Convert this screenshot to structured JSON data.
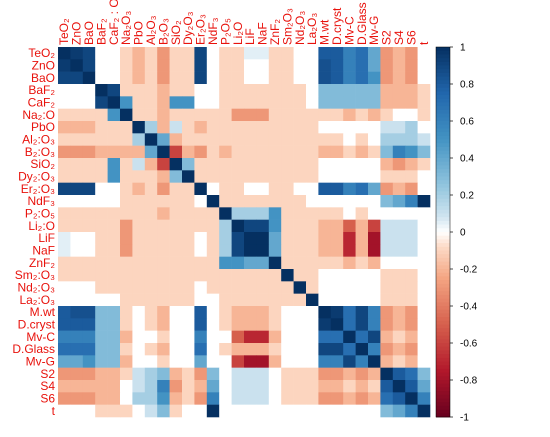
{
  "chart_data": {
    "type": "heatmap",
    "variables": [
      "TeO₂",
      "ZnO",
      "BaO",
      "BaF₂",
      "CaF₂",
      "Na₂O",
      "PbO",
      "Al₂O₃",
      "B₂O₃",
      "SiO₂",
      "Dy₂O₃",
      "Er₂O₃",
      "NdF₃",
      "P₂O₅",
      "Li₂O",
      "LiF",
      "NaF",
      "ZnF₂",
      "Sm₂O₃",
      "Nd₂O₃",
      "La₂O₃",
      "M.wt",
      "D.cryst",
      "Mv-C",
      "D.Glass",
      "Mv-G",
      "S2",
      "S4",
      "S6",
      "t"
    ],
    "x_labels": [
      "TeO₂",
      "ZnO",
      "BaO",
      "BaF₂",
      "CaF₂ : O",
      "Na₂O₃",
      "PbO",
      "Al₂O₃",
      "B₂O₃",
      "SiO₂",
      "Dy₂O₃",
      "Er₂O₃",
      "NdF₃",
      "P₂O₅",
      "Li₂O",
      "LiF",
      "NaF",
      "ZnF₂",
      "Sm₂O₃",
      "Nd₂O₃",
      "La₂O₃",
      "M.wt",
      "D.cryst",
      "Mv-C",
      "D.Glass",
      "Mv-G",
      "S2",
      "S4",
      "S6",
      "t"
    ],
    "y_labels": [
      "TeO₂",
      "ZnO",
      "BaO",
      "BaF₂",
      "CaF₂",
      "Na₂:O",
      "PbO",
      "Al₂:O₃",
      "B₂:O₃",
      "SiO₂",
      "Dy₂:O₃",
      "Er₂:O₃",
      "NdF₃",
      "P₂:O₅",
      "Li₂:O",
      "LiF",
      "NaF",
      "ZnF₂",
      "Sm₂:O₃",
      "Nd₂:O₃",
      "La₂:O₃",
      "M.wt",
      "D.cryst",
      "Mv-C",
      "D.Glass",
      "Mv-G",
      "S2",
      "S4",
      "S6",
      "t"
    ],
    "matrix": [
      [
        1,
        0.95,
        0.9,
        0,
        0,
        -0.1,
        -0.2,
        -0.1,
        -0.3,
        -0.1,
        -0.1,
        0.9,
        0,
        -0.1,
        -0.1,
        0.05,
        0.05,
        -0.1,
        -0.1,
        0,
        0,
        0.8,
        0.8,
        0.6,
        0.7,
        0.4,
        -0.3,
        -0.2,
        -0.3,
        0
      ],
      [
        0.95,
        1,
        0.9,
        0,
        0,
        -0.1,
        -0.2,
        -0.1,
        -0.3,
        -0.1,
        -0.1,
        0.9,
        0,
        -0.1,
        -0.1,
        0,
        0,
        -0.1,
        -0.1,
        0,
        0,
        0.85,
        0.8,
        0.6,
        0.7,
        0.4,
        -0.3,
        -0.2,
        -0.3,
        0
      ],
      [
        0.9,
        0.9,
        1,
        0,
        0,
        -0.1,
        -0.2,
        -0.1,
        -0.3,
        -0.1,
        -0.1,
        0.9,
        0,
        -0.1,
        -0.1,
        0,
        0,
        -0.1,
        -0.1,
        0,
        0,
        0.85,
        0.8,
        0.6,
        0.7,
        0.5,
        -0.3,
        -0.2,
        -0.3,
        0
      ],
      [
        0,
        0,
        0,
        1,
        0.9,
        -0.1,
        -0.1,
        -0.1,
        -0.2,
        -0.1,
        -0.1,
        0,
        0,
        -0.1,
        -0.1,
        -0.1,
        -0.1,
        -0.1,
        -0.1,
        -0.1,
        0,
        0.3,
        0.3,
        0.3,
        0.3,
        0.3,
        -0.2,
        -0.2,
        -0.2,
        -0.1
      ],
      [
        0,
        0,
        0,
        0.9,
        1,
        0.5,
        -0.1,
        -0.1,
        -0.2,
        0.5,
        0.5,
        0,
        0,
        -0.1,
        -0.1,
        -0.1,
        -0.1,
        -0.1,
        -0.1,
        -0.1,
        0,
        0.3,
        0.3,
        0.3,
        0.3,
        0.3,
        -0.2,
        -0.2,
        -0.2,
        -0.1
      ],
      [
        -0.1,
        -0.1,
        -0.1,
        -0.1,
        0.5,
        1,
        -0.1,
        -0.1,
        -0.2,
        -0.1,
        -0.1,
        -0.1,
        -0.1,
        -0.1,
        -0.3,
        -0.3,
        -0.3,
        -0.1,
        -0.1,
        -0.1,
        -0.1,
        -0.1,
        -0.1,
        -0.2,
        -0.1,
        -0.2,
        -0.1,
        0,
        0,
        -0.1
      ],
      [
        -0.2,
        -0.2,
        -0.2,
        -0.1,
        -0.1,
        -0.1,
        1,
        0.2,
        -0.2,
        0.1,
        -0.1,
        -0.2,
        -0.1,
        -0.1,
        -0.1,
        -0.1,
        -0.1,
        -0.1,
        -0.1,
        -0.1,
        -0.1,
        0,
        0,
        0,
        0,
        0,
        0.1,
        0.1,
        0.2,
        0
      ],
      [
        -0.1,
        -0.1,
        -0.1,
        -0.1,
        -0.1,
        -0.1,
        0.2,
        1,
        0.4,
        -0.2,
        -0.1,
        -0.1,
        -0.1,
        -0.1,
        -0.1,
        -0.1,
        -0.1,
        -0.1,
        -0.1,
        -0.1,
        -0.1,
        -0.1,
        -0.1,
        0,
        -0.1,
        0,
        0.2,
        0.2,
        0.2,
        0.1
      ],
      [
        -0.3,
        -0.3,
        -0.3,
        -0.2,
        -0.2,
        -0.2,
        -0.2,
        0.4,
        1,
        -0.6,
        -0.2,
        -0.3,
        -0.1,
        -0.2,
        -0.1,
        -0.1,
        -0.1,
        -0.1,
        -0.1,
        -0.1,
        -0.1,
        -0.2,
        -0.2,
        -0.1,
        -0.2,
        -0.1,
        0.3,
        0.6,
        0.5,
        0.3
      ],
      [
        -0.1,
        -0.1,
        -0.1,
        -0.1,
        0.5,
        -0.1,
        0.1,
        -0.2,
        -0.6,
        1,
        0.3,
        -0.1,
        -0.1,
        -0.1,
        -0.1,
        -0.1,
        -0.1,
        -0.1,
        -0.1,
        -0.1,
        -0.1,
        0,
        0,
        0,
        0,
        0,
        -0.2,
        -0.3,
        -0.2,
        -0.1
      ],
      [
        -0.1,
        -0.1,
        -0.1,
        -0.1,
        0.5,
        -0.1,
        -0.1,
        -0.1,
        -0.2,
        0.3,
        1,
        -0.1,
        -0.1,
        -0.1,
        -0.1,
        -0.1,
        -0.1,
        -0.1,
        -0.1,
        -0.1,
        -0.1,
        0,
        0,
        0,
        0,
        0,
        -0.1,
        -0.1,
        -0.1,
        0
      ],
      [
        0.9,
        0.9,
        0.9,
        0,
        0,
        -0.1,
        -0.2,
        -0.1,
        -0.3,
        -0.1,
        -0.1,
        1,
        0,
        -0.1,
        -0.1,
        0,
        0,
        -0.1,
        -0.1,
        0,
        0,
        0.8,
        0.8,
        0.6,
        0.7,
        0.4,
        -0.3,
        -0.2,
        -0.3,
        0
      ],
      [
        0,
        0,
        0,
        0,
        0,
        -0.1,
        -0.1,
        -0.1,
        -0.1,
        -0.1,
        -0.1,
        0,
        1,
        -0.1,
        -0.1,
        -0.1,
        -0.1,
        -0.1,
        -0.1,
        -0.1,
        0,
        0,
        0,
        0,
        0,
        0,
        0.3,
        0.4,
        0.6,
        1
      ],
      [
        -0.1,
        -0.1,
        -0.1,
        -0.1,
        -0.1,
        -0.1,
        -0.1,
        -0.1,
        -0.2,
        -0.1,
        -0.1,
        -0.1,
        -0.1,
        1,
        0.2,
        0.2,
        0.2,
        0.5,
        -0.1,
        -0.1,
        -0.1,
        -0.1,
        -0.1,
        0,
        -0.1,
        0,
        0,
        0,
        0,
        0
      ],
      [
        -0.1,
        -0.1,
        -0.1,
        -0.1,
        -0.1,
        -0.3,
        -0.1,
        -0.1,
        -0.1,
        -0.1,
        -0.1,
        -0.1,
        -0.1,
        0.2,
        1,
        0.9,
        0.9,
        0.5,
        -0.1,
        -0.1,
        -0.1,
        -0.2,
        -0.2,
        -0.5,
        -0.2,
        -0.6,
        0.1,
        0.1,
        0.1,
        0
      ],
      [
        0.05,
        0,
        0,
        -0.1,
        -0.1,
        -0.3,
        -0.1,
        -0.1,
        -0.1,
        -0.1,
        -0.1,
        0,
        -0.1,
        0.2,
        0.9,
        1,
        1,
        0.4,
        -0.1,
        -0.1,
        -0.1,
        -0.2,
        -0.2,
        -0.7,
        -0.2,
        -0.8,
        0.1,
        0.1,
        0.1,
        0
      ],
      [
        0.05,
        0,
        0,
        -0.1,
        -0.1,
        -0.3,
        -0.1,
        -0.1,
        -0.1,
        -0.1,
        -0.1,
        0,
        -0.1,
        0.2,
        0.9,
        1,
        1,
        0.4,
        -0.1,
        -0.1,
        -0.1,
        -0.2,
        -0.2,
        -0.7,
        -0.2,
        -0.8,
        0.1,
        0.1,
        0.1,
        0
      ],
      [
        -0.1,
        -0.1,
        -0.1,
        -0.1,
        -0.1,
        -0.1,
        -0.1,
        -0.1,
        -0.1,
        -0.1,
        -0.1,
        -0.1,
        -0.1,
        0.5,
        0.5,
        0.4,
        0.4,
        1,
        -0.1,
        -0.1,
        -0.1,
        -0.1,
        -0.1,
        -0.2,
        -0.1,
        -0.2,
        0,
        0,
        0,
        0
      ],
      [
        -0.1,
        -0.1,
        -0.1,
        -0.1,
        -0.1,
        -0.1,
        -0.1,
        -0.1,
        -0.1,
        -0.1,
        -0.1,
        -0.1,
        -0.1,
        -0.1,
        -0.1,
        -0.1,
        -0.1,
        -0.1,
        1,
        -0.1,
        -0.1,
        0,
        0,
        0,
        0,
        0,
        -0.1,
        -0.1,
        -0.1,
        0
      ],
      [
        0,
        0,
        0,
        -0.1,
        -0.1,
        -0.1,
        -0.1,
        -0.1,
        -0.1,
        -0.1,
        -0.1,
        0,
        -0.1,
        -0.1,
        -0.1,
        -0.1,
        -0.1,
        -0.1,
        -0.1,
        1,
        -0.1,
        0,
        0,
        0,
        0,
        0,
        -0.1,
        -0.1,
        -0.1,
        0
      ],
      [
        0,
        0,
        0,
        0,
        0,
        -0.1,
        -0.1,
        -0.1,
        -0.1,
        -0.1,
        -0.1,
        0,
        0,
        -0.1,
        -0.1,
        -0.1,
        -0.1,
        -0.1,
        -0.1,
        -0.1,
        1,
        0,
        0,
        0,
        0,
        0,
        -0.1,
        -0.1,
        -0.1,
        0
      ],
      [
        0.8,
        0.85,
        0.85,
        0.3,
        0.3,
        -0.1,
        0,
        -0.1,
        -0.2,
        0,
        0,
        0.8,
        0,
        -0.1,
        -0.2,
        -0.2,
        -0.2,
        -0.1,
        0,
        0,
        0,
        1,
        0.95,
        0.7,
        0.9,
        0.6,
        -0.3,
        -0.2,
        -0.3,
        0
      ],
      [
        0.8,
        0.8,
        0.8,
        0.3,
        0.3,
        -0.1,
        0,
        -0.1,
        -0.2,
        0,
        0,
        0.8,
        0,
        -0.1,
        -0.2,
        -0.2,
        -0.2,
        -0.1,
        0,
        0,
        0,
        0.95,
        1,
        0.7,
        0.9,
        0.6,
        -0.3,
        -0.2,
        -0.3,
        0
      ],
      [
        0.6,
        0.6,
        0.6,
        0.3,
        0.3,
        -0.2,
        0,
        0,
        -0.1,
        0,
        0,
        0.6,
        0,
        0,
        -0.5,
        -0.7,
        -0.7,
        -0.2,
        0,
        0,
        0,
        0.7,
        0.7,
        1,
        0.7,
        0.9,
        -0.2,
        -0.1,
        -0.2,
        0
      ],
      [
        0.7,
        0.7,
        0.7,
        0.3,
        0.3,
        -0.1,
        0,
        -0.1,
        -0.2,
        0,
        0,
        0.7,
        0,
        -0.1,
        -0.2,
        -0.2,
        -0.2,
        -0.1,
        0,
        0,
        0,
        0.9,
        0.9,
        0.7,
        1,
        0.6,
        -0.3,
        -0.2,
        -0.3,
        0
      ],
      [
        0.4,
        0.4,
        0.5,
        0.3,
        0.3,
        -0.2,
        0,
        0,
        -0.1,
        0,
        0,
        0.4,
        0,
        0,
        -0.6,
        -0.8,
        -0.8,
        -0.2,
        0,
        0,
        0,
        0.6,
        0.6,
        0.9,
        0.6,
        1,
        -0.2,
        -0.1,
        -0.2,
        0
      ],
      [
        -0.3,
        -0.3,
        -0.3,
        -0.2,
        -0.2,
        -0.1,
        0.1,
        0.2,
        0.3,
        -0.2,
        -0.1,
        -0.3,
        0.3,
        0,
        0.1,
        0.1,
        0.1,
        0,
        -0.1,
        -0.1,
        -0.1,
        -0.3,
        -0.3,
        -0.2,
        -0.3,
        -0.2,
        1,
        0.8,
        0.7,
        0.3
      ],
      [
        -0.2,
        -0.2,
        -0.2,
        -0.2,
        -0.2,
        0,
        0.1,
        0.2,
        0.6,
        -0.3,
        -0.1,
        -0.2,
        0.4,
        0,
        0.1,
        0.1,
        0.1,
        0,
        -0.1,
        -0.1,
        -0.1,
        -0.2,
        -0.2,
        -0.1,
        -0.2,
        -0.1,
        0.8,
        1,
        0.8,
        0.4
      ],
      [
        -0.3,
        -0.3,
        -0.3,
        -0.2,
        -0.2,
        0,
        0.2,
        0.2,
        0.5,
        -0.2,
        -0.1,
        -0.3,
        0.6,
        0,
        0.1,
        0.1,
        0.1,
        0,
        -0.1,
        -0.1,
        -0.1,
        -0.3,
        -0.3,
        -0.2,
        -0.3,
        -0.2,
        0.7,
        0.8,
        1,
        0.6
      ],
      [
        0,
        0,
        0,
        -0.1,
        -0.1,
        -0.1,
        0,
        0.1,
        0.3,
        -0.1,
        0,
        0,
        1,
        0,
        0,
        0,
        0,
        0,
        0,
        0,
        0,
        0,
        0,
        0,
        0,
        0,
        0.3,
        0.4,
        0.6,
        1
      ]
    ],
    "colorbar_ticks": [
      "1",
      "0.8",
      "0.6",
      "0.4",
      "0.2",
      "0",
      "-0.2",
      "-0.4",
      "-0.6",
      "-0.8",
      "-1"
    ],
    "range": [
      -1,
      1
    ],
    "colors": {
      "negative": "#67001f",
      "neutral": "#ffffff",
      "positive": "#053061"
    },
    "legend_position": "right"
  }
}
